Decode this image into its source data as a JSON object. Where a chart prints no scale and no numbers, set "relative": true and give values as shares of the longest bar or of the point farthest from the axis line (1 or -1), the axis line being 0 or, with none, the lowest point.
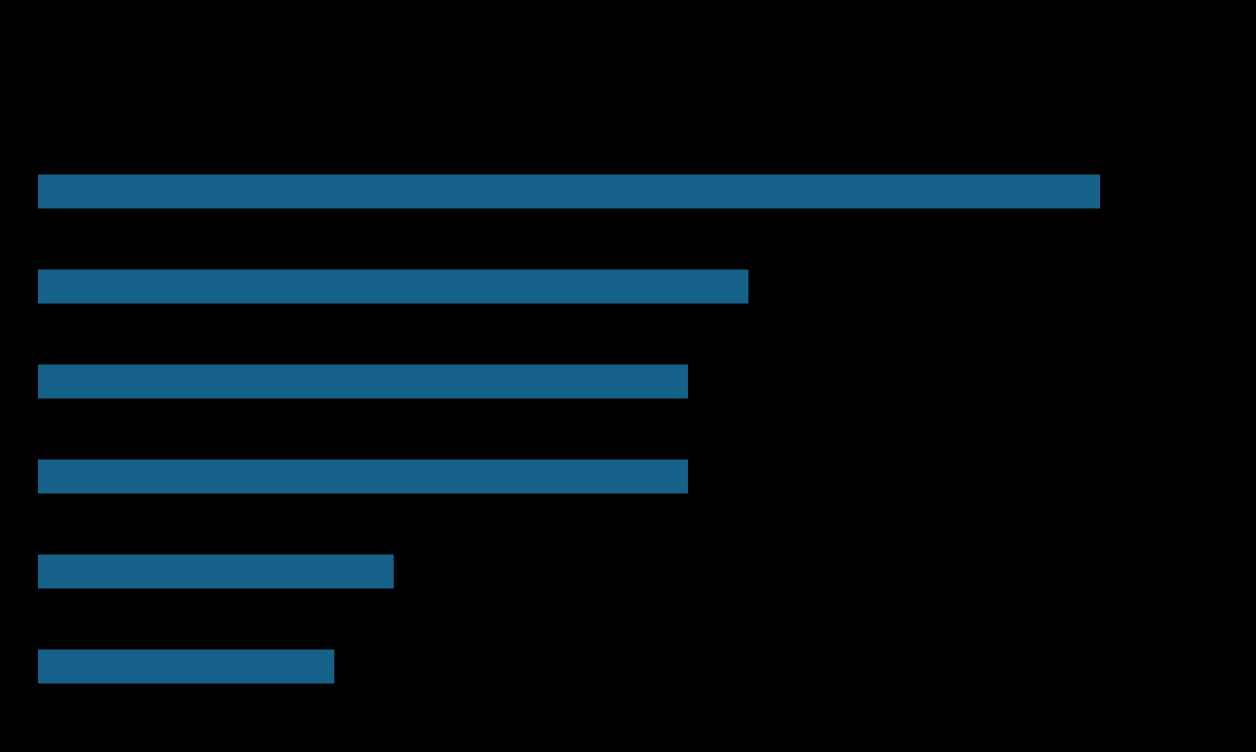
{
  "chart_data": {
    "type": "bar",
    "orientation": "horizontal",
    "relative": true,
    "categories": [
      null,
      null,
      null,
      null,
      null,
      null
    ],
    "values": [
      1,
      0.669,
      0.612,
      0.612,
      0.335,
      0.279
    ],
    "color": "#17628a"
  }
}
